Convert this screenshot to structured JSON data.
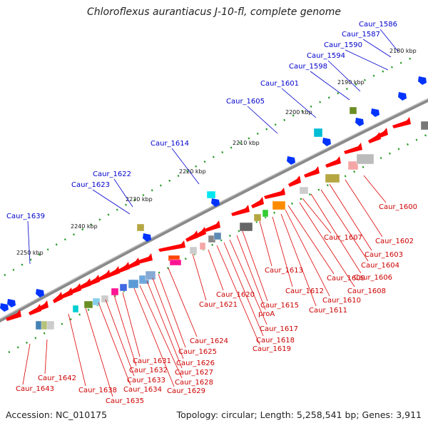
{
  "title": "Chloroflexus aurantiacus J-10-fl, complete genome",
  "footer": {
    "accession": "Accession: NC_010175",
    "summary": "Topology: circular; Length: 5,258,541 bp; Genes: 3,911"
  },
  "colors": {
    "forward_gene": "#ff0000",
    "reverse_gene": "#0033ff",
    "forward_label": "#cc0000",
    "reverse_label": "#0000cc",
    "backbone": "#777777",
    "tick": "#229922"
  },
  "ticks": [
    "2180 kbp",
    "2190 kbp",
    "2200 kbp",
    "2210 kbp",
    "2220 kbp",
    "2230 kbp",
    "2240 kbp",
    "2250 kbp"
  ],
  "reverse_labels": [
    "Caur_1586",
    "Caur_1587",
    "Caur_1590",
    "Caur_1594",
    "Caur_1598",
    "Caur_1601",
    "Caur_1605",
    "Caur_1614",
    "Caur_1622",
    "Caur_1623",
    "Caur_1639"
  ],
  "forward_labels": [
    "Caur_1600",
    "Caur_1602",
    "Caur_1603",
    "Caur_1604",
    "Caur_1606",
    "Caur_1607",
    "Caur_1608",
    "Caur_1609",
    "Caur_1610",
    "Caur_1611",
    "Caur_1612",
    "Caur_1613",
    "Caur_1615",
    "proA",
    "Caur_1617",
    "Caur_1618",
    "Caur_1619",
    "Caur_1620",
    "Caur_1621",
    "Caur_1624",
    "Caur_1625",
    "Caur_1626",
    "Caur_1627",
    "Caur_1628",
    "Caur_1629",
    "Caur_1631",
    "Caur_1632",
    "Caur_1633",
    "Caur_1634",
    "Caur_1635",
    "Caur_1638",
    "Caur_1642",
    "Caur_1643"
  ]
}
